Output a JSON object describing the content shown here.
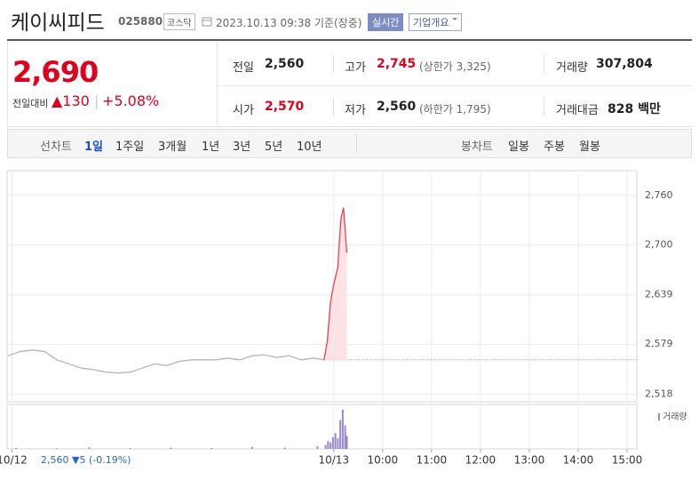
{
  "header": {
    "title": "케이씨피드",
    "code": "025880",
    "market": "코스닥",
    "timestamp": "2023.10.13 09:38 기준(장중)",
    "realtime_button": "실시간",
    "company_button": "기업개요"
  },
  "quote": {
    "price": "2,690",
    "change_label": "전일대비",
    "change": "▲130",
    "change_rate": "+5.08%",
    "rows": [
      [
        {
          "label": "전일",
          "value": "2,560"
        },
        {
          "label": "고가",
          "value": "2,745",
          "note": "(상한가 3,325)"
        },
        {
          "label": "거래량",
          "value": "307,804"
        }
      ],
      [
        {
          "label": "시가",
          "value": "2,570"
        },
        {
          "label": "저가",
          "value": "2,560",
          "note": "(하한가 1,795)"
        },
        {
          "label": "거래대금",
          "value": "828 백만"
        }
      ]
    ]
  },
  "tabs": {
    "line_label": "선차트",
    "line_items": [
      "1일",
      "1주일",
      "3개월",
      "1년",
      "3년",
      "5년",
      "10년"
    ],
    "candle_label": "봉차트",
    "candle_items": [
      "일봉",
      "주봉",
      "월봉"
    ]
  },
  "chart_data": {
    "type": "line",
    "series": [
      {
        "color": "#b5b5b5",
        "x": [
          -400,
          -385,
          -370,
          -355,
          -340,
          -325,
          -310,
          -295,
          -280,
          -265,
          -250,
          -235,
          -220,
          -205,
          -190,
          -175,
          -160,
          -145,
          -130,
          -115,
          -100,
          -85,
          -70,
          -55,
          -40,
          -25,
          -12
        ],
        "values": [
          2565,
          2570,
          2572,
          2570,
          2560,
          2555,
          2550,
          2548,
          2545,
          2544,
          2545,
          2550,
          2555,
          2553,
          2558,
          2560,
          2560,
          2560,
          2562,
          2560,
          2565,
          2566,
          2563,
          2565,
          2560,
          2562,
          2560
        ]
      },
      {
        "color": "#e8404a",
        "fill": "#fbe3e5",
        "x": [
          -12,
          -8,
          -4,
          0,
          5,
          7,
          9,
          12,
          16
        ],
        "values": [
          2560,
          2582,
          2630,
          2652,
          2673,
          2706,
          2733,
          2745,
          2690
        ]
      }
    ],
    "reference_line": 2560,
    "xlim": [
      -401,
      372
    ],
    "ylim": [
      2509,
      2790
    ],
    "yticks": [
      {
        "value": 2518,
        "label": "2,518"
      },
      {
        "value": 2579,
        "label": "2,579"
      },
      {
        "value": 2639,
        "label": "2,639"
      },
      {
        "value": 2700,
        "label": "2,700"
      },
      {
        "value": 2760,
        "label": "2,760"
      }
    ],
    "xticks": [
      {
        "value": -395,
        "label": "10/12"
      },
      {
        "value": 0,
        "label": "10/13"
      },
      {
        "value": 60,
        "label": "10:00"
      },
      {
        "value": 120,
        "label": "11:00"
      },
      {
        "value": 180,
        "label": "12:00"
      },
      {
        "value": 240,
        "label": "13:00"
      },
      {
        "value": 300,
        "label": "14:00"
      },
      {
        "value": 360,
        "label": "15:00"
      }
    ],
    "prev_day_label": "2,560 ▼5 (-0.19%)",
    "volume": {
      "name": "거래량",
      "color": "#9b86c9",
      "x": [
        -390,
        -340,
        -300,
        -250,
        -200,
        -150,
        -100,
        -60,
        -20,
        -10,
        -7,
        -4,
        -1,
        2,
        5,
        8,
        11,
        14,
        16
      ],
      "values": [
        800,
        500,
        1200,
        600,
        900,
        700,
        1500,
        1000,
        2000,
        3000,
        6000,
        5000,
        9000,
        12000,
        8000,
        22000,
        30000,
        18000,
        10000
      ],
      "vlim": [
        0,
        32000
      ]
    },
    "grid": true
  }
}
